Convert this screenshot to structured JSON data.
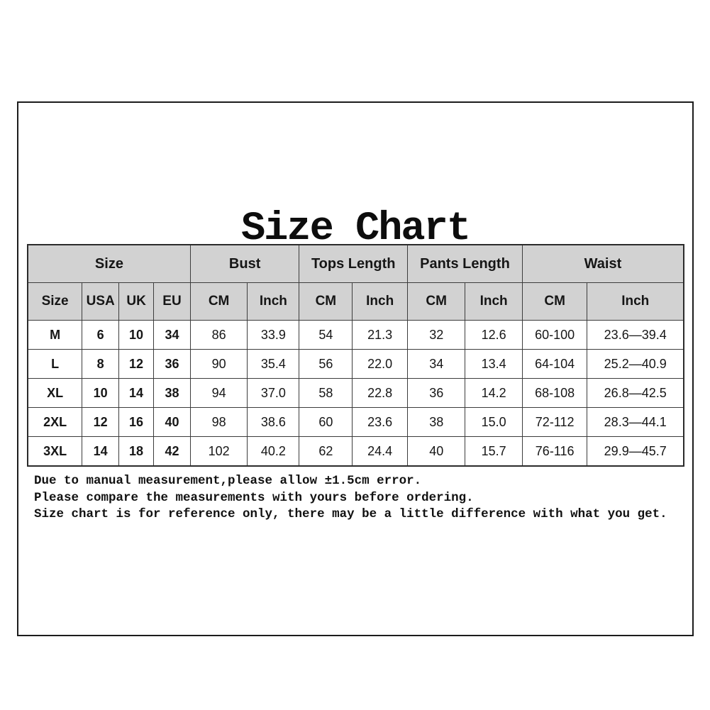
{
  "title": "Size Chart",
  "colors": {
    "background": "#ffffff",
    "frame_border": "#1c1c1c",
    "table_border": "#3c3c3c",
    "header_bg": "#d2d2d2",
    "text": "#161616"
  },
  "table": {
    "group_headers": [
      {
        "label": "Size",
        "span": 4
      },
      {
        "label": "Bust",
        "span": 2
      },
      {
        "label": "Tops Length",
        "span": 2
      },
      {
        "label": "Pants Length",
        "span": 2
      },
      {
        "label": "Waist",
        "span": 2
      }
    ],
    "sub_headers": [
      "Size",
      "USA",
      "UK",
      "EU",
      "CM",
      "Inch",
      "CM",
      "Inch",
      "CM",
      "Inch",
      "CM",
      "Inch"
    ],
    "bold_columns": 4,
    "column_widths_pct": [
      8.3,
      5.6,
      5.3,
      5.6,
      8.7,
      7.9,
      8.1,
      8.4,
      8.8,
      8.7,
      9.9,
      14.7
    ],
    "rows": [
      [
        "M",
        "6",
        "10",
        "34",
        "86",
        "33.9",
        "54",
        "21.3",
        "32",
        "12.6",
        "60-100",
        "23.6—39.4"
      ],
      [
        "L",
        "8",
        "12",
        "36",
        "90",
        "35.4",
        "56",
        "22.0",
        "34",
        "13.4",
        "64-104",
        "25.2—40.9"
      ],
      [
        "XL",
        "10",
        "14",
        "38",
        "94",
        "37.0",
        "58",
        "22.8",
        "36",
        "14.2",
        "68-108",
        "26.8—42.5"
      ],
      [
        "2XL",
        "12",
        "16",
        "40",
        "98",
        "38.6",
        "60",
        "23.6",
        "38",
        "15.0",
        "72-112",
        "28.3—44.1"
      ],
      [
        "3XL",
        "14",
        "18",
        "42",
        "102",
        "40.2",
        "62",
        "24.4",
        "40",
        "15.7",
        "76-116",
        "29.9—45.7"
      ]
    ]
  },
  "notes": [
    "Due to manual measurement,please allow ±1.5cm error.",
    "Please compare the measurements with yours before ordering.",
    "Size chart is for reference only, there may be a little difference with what you get."
  ]
}
